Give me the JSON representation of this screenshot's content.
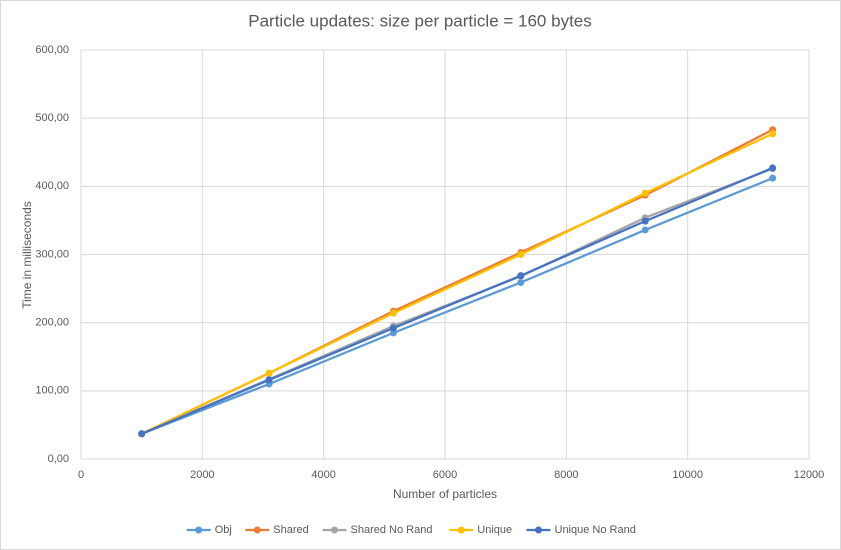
{
  "chart_data": {
    "type": "line",
    "title": "Particle updates: size per particle = 160 bytes",
    "x_label": "Number of particles",
    "y_label": "Time in milliseconds",
    "x": [
      1000,
      3100,
      5150,
      7250,
      9300,
      11400
    ],
    "xlim": [
      0,
      12000
    ],
    "xticks": [
      0,
      2000,
      4000,
      6000,
      8000,
      10000,
      12000
    ],
    "ylim": [
      0,
      600
    ],
    "yticks": [
      {
        "value": 0,
        "label": "0,00"
      },
      {
        "value": 100,
        "label": "100,00"
      },
      {
        "value": 200,
        "label": "200,00"
      },
      {
        "value": 300,
        "label": "300,00"
      },
      {
        "value": 400,
        "label": "400,00"
      },
      {
        "value": 500,
        "label": "500,00"
      },
      {
        "value": 600,
        "label": "600,00"
      }
    ],
    "grid": true,
    "legend": "bottom",
    "series": [
      {
        "name": "Obj",
        "color": "#5b9bd5",
        "values": [
          37,
          110,
          185,
          259,
          336,
          412
        ]
      },
      {
        "name": "Shared",
        "color": "#ed7d31",
        "values": [
          37,
          126,
          217,
          303,
          387,
          483
        ]
      },
      {
        "name": "Shared No Rand",
        "color": "#a5a5a5",
        "values": [
          37,
          117,
          195,
          268,
          354,
          426
        ]
      },
      {
        "name": "Unique",
        "color": "#ffc000",
        "values": [
          37,
          126,
          214,
          300,
          390,
          477
        ]
      },
      {
        "name": "Unique No Rand",
        "color": "#4472c4",
        "values": [
          37,
          116,
          192,
          269,
          349,
          427
        ]
      }
    ]
  }
}
